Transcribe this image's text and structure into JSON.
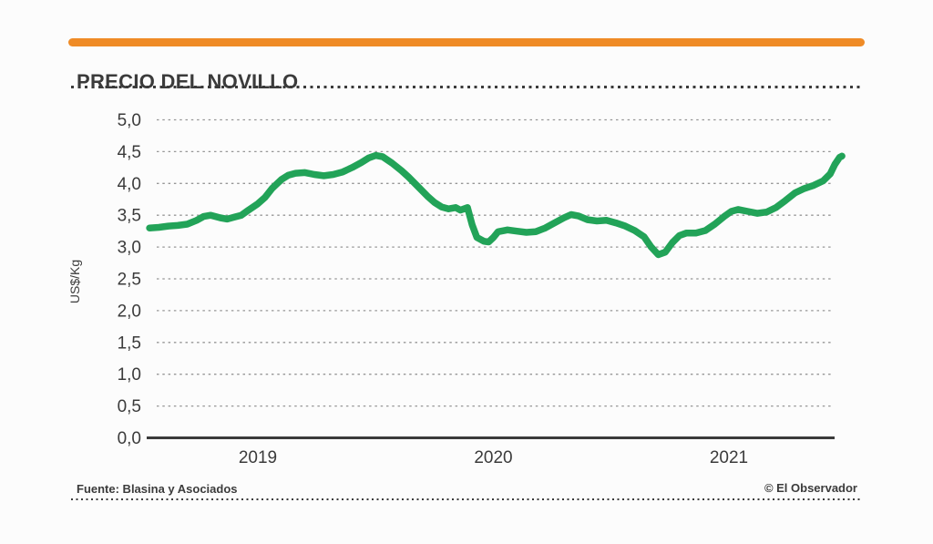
{
  "header": {
    "title": "PRECIO DEL NOVILLO"
  },
  "footer": {
    "source": "Fuente: Blasina y Asociados",
    "credit": "© El Observador"
  },
  "colors": {
    "accent_orange": "#EF8B26",
    "line_green": "#22A358",
    "grid": "#969696",
    "axis": "#3A3A3A",
    "text": "#3B3B3B",
    "bg": "#FCFCFC"
  },
  "chart_data": {
    "type": "line",
    "title": "PRECIO DEL NOVILLO",
    "ylabel": "US$/Kg",
    "xlabel": "",
    "ylim": [
      0,
      5
    ],
    "ytick_step": 0.5,
    "ytick_labels": [
      "0,0",
      "0,5",
      "1,0",
      "1,5",
      "2,0",
      "2,5",
      "3,0",
      "3,5",
      "4,0",
      "4,5",
      "5,0"
    ],
    "xtick_years": [
      2019,
      2020,
      2021
    ],
    "xtick_labels": [
      "2019",
      "2020",
      "2021"
    ],
    "grid": true,
    "legend": "none",
    "series": [
      {
        "name": "Precio del novillo (US$/Kg)",
        "points": [
          [
            2018.54,
            3.3
          ],
          [
            2018.58,
            3.31
          ],
          [
            2018.62,
            3.33
          ],
          [
            2018.66,
            3.34
          ],
          [
            2018.7,
            3.36
          ],
          [
            2018.74,
            3.42
          ],
          [
            2018.77,
            3.48
          ],
          [
            2018.8,
            3.5
          ],
          [
            2018.84,
            3.46
          ],
          [
            2018.87,
            3.44
          ],
          [
            2018.9,
            3.47
          ],
          [
            2018.93,
            3.5
          ],
          [
            2018.96,
            3.58
          ],
          [
            2019.0,
            3.68
          ],
          [
            2019.03,
            3.78
          ],
          [
            2019.06,
            3.92
          ],
          [
            2019.1,
            4.06
          ],
          [
            2019.13,
            4.13
          ],
          [
            2019.16,
            4.16
          ],
          [
            2019.2,
            4.17
          ],
          [
            2019.24,
            4.14
          ],
          [
            2019.28,
            4.12
          ],
          [
            2019.32,
            4.14
          ],
          [
            2019.36,
            4.18
          ],
          [
            2019.4,
            4.25
          ],
          [
            2019.44,
            4.33
          ],
          [
            2019.47,
            4.4
          ],
          [
            2019.5,
            4.44
          ],
          [
            2019.53,
            4.42
          ],
          [
            2019.57,
            4.32
          ],
          [
            2019.61,
            4.2
          ],
          [
            2019.64,
            4.1
          ],
          [
            2019.68,
            3.95
          ],
          [
            2019.72,
            3.8
          ],
          [
            2019.75,
            3.7
          ],
          [
            2019.78,
            3.63
          ],
          [
            2019.81,
            3.6
          ],
          [
            2019.84,
            3.62
          ],
          [
            2019.86,
            3.58
          ],
          [
            2019.89,
            3.62
          ],
          [
            2019.91,
            3.35
          ],
          [
            2019.93,
            3.15
          ],
          [
            2019.96,
            3.09
          ],
          [
            2019.98,
            3.08
          ],
          [
            2020.0,
            3.15
          ],
          [
            2020.02,
            3.24
          ],
          [
            2020.06,
            3.27
          ],
          [
            2020.1,
            3.25
          ],
          [
            2020.14,
            3.23
          ],
          [
            2020.18,
            3.24
          ],
          [
            2020.22,
            3.3
          ],
          [
            2020.26,
            3.38
          ],
          [
            2020.3,
            3.46
          ],
          [
            2020.33,
            3.51
          ],
          [
            2020.36,
            3.49
          ],
          [
            2020.4,
            3.43
          ],
          [
            2020.44,
            3.41
          ],
          [
            2020.48,
            3.42
          ],
          [
            2020.52,
            3.38
          ],
          [
            2020.56,
            3.33
          ],
          [
            2020.6,
            3.26
          ],
          [
            2020.64,
            3.16
          ],
          [
            2020.67,
            3.0
          ],
          [
            2020.7,
            2.88
          ],
          [
            2020.73,
            2.92
          ],
          [
            2020.76,
            3.07
          ],
          [
            2020.79,
            3.18
          ],
          [
            2020.82,
            3.22
          ],
          [
            2020.86,
            3.22
          ],
          [
            2020.9,
            3.26
          ],
          [
            2020.94,
            3.36
          ],
          [
            2020.98,
            3.48
          ],
          [
            2021.01,
            3.56
          ],
          [
            2021.04,
            3.59
          ],
          [
            2021.08,
            3.56
          ],
          [
            2021.12,
            3.53
          ],
          [
            2021.16,
            3.55
          ],
          [
            2021.2,
            3.62
          ],
          [
            2021.24,
            3.73
          ],
          [
            2021.28,
            3.85
          ],
          [
            2021.32,
            3.92
          ],
          [
            2021.36,
            3.97
          ],
          [
            2021.4,
            4.04
          ],
          [
            2021.43,
            4.15
          ],
          [
            2021.45,
            4.3
          ],
          [
            2021.47,
            4.41
          ],
          [
            2021.48,
            4.43
          ]
        ]
      }
    ]
  }
}
